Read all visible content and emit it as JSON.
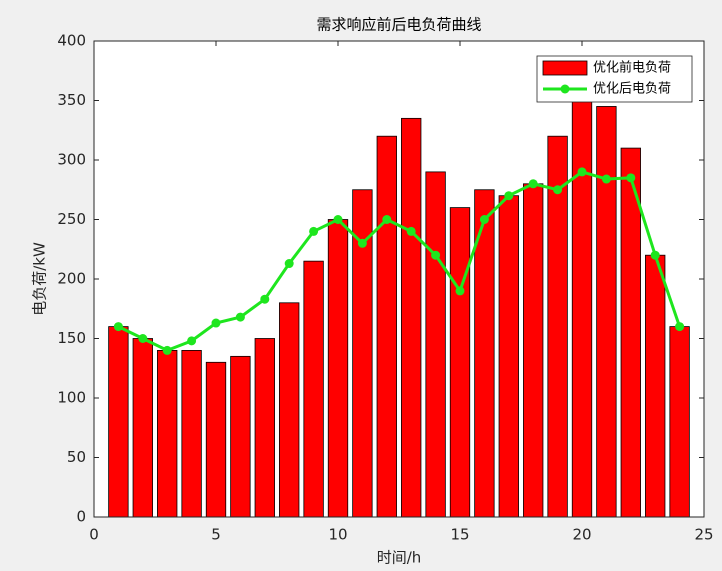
{
  "chart_data": {
    "type": "bar",
    "title": "需求响应前后电负荷曲线",
    "x_label": "时间/h",
    "y_label": "电负荷/kW",
    "x": [
      1,
      2,
      3,
      4,
      5,
      6,
      7,
      8,
      9,
      10,
      11,
      12,
      13,
      14,
      15,
      16,
      17,
      18,
      19,
      20,
      21,
      22,
      23,
      24
    ],
    "series": [
      {
        "name": "优化前电负荷",
        "type": "bar",
        "color": "#ff0000",
        "values": [
          160,
          150,
          140,
          140,
          130,
          135,
          150,
          180,
          215,
          250,
          275,
          320,
          335,
          290,
          260,
          275,
          270,
          280,
          320,
          360,
          345,
          310,
          220,
          160
        ]
      },
      {
        "name": "优化后电负荷",
        "type": "line",
        "color": "#1ee61e",
        "values": [
          160,
          150,
          140,
          148,
          163,
          168,
          183,
          213,
          240,
          250,
          230,
          250,
          240,
          220,
          190,
          250,
          270,
          280,
          275,
          290,
          284,
          285,
          220,
          160
        ]
      }
    ],
    "xlim": [
      0,
      25
    ],
    "xticks": [
      0,
      5,
      10,
      15,
      20,
      25
    ],
    "ylim": [
      0,
      400
    ],
    "yticks": [
      0,
      50,
      100,
      150,
      200,
      250,
      300,
      350,
      400
    ],
    "grid": false,
    "legend": "northeast"
  }
}
